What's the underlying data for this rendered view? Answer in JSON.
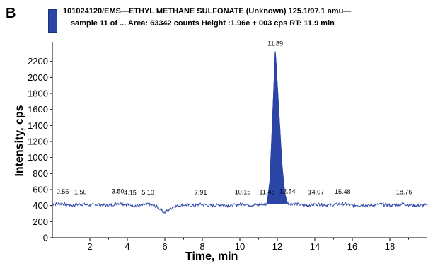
{
  "panel_letter": "B",
  "colors": {
    "trace": "#2b45a6",
    "peak_fill": "#2b45a6",
    "axis": "#000000"
  },
  "chart_data": {
    "type": "line",
    "title_line1": "101024120/EMS—ETHYL METHANE SULFONATE (Unknown) 125.1/97.1 amu—",
    "title_line2": "sample 11 of ...  Area: 63342 counts Height :1.96e + 003 cps RT: 11.9 min",
    "xlabel": "Time, min",
    "ylabel": "Intensity, cps",
    "xlim": [
      0,
      20
    ],
    "ylim": [
      0,
      2400
    ],
    "xticks": [
      2,
      4,
      6,
      8,
      10,
      12,
      14,
      16,
      18
    ],
    "yticks": [
      0,
      200,
      400,
      600,
      800,
      1000,
      1200,
      1400,
      1600,
      1800,
      2000,
      2200
    ],
    "baseline": 410,
    "peak": {
      "rt": 11.89,
      "height": 2350,
      "start": 11.45,
      "end": 12.54
    },
    "series": [
      {
        "values": [
          [
            0,
            420
          ],
          [
            0.55,
            425
          ],
          [
            1.0,
            400
          ],
          [
            1.5,
            420
          ],
          [
            2.0,
            405
          ],
          [
            2.5,
            415
          ],
          [
            3.0,
            400
          ],
          [
            3.5,
            430
          ],
          [
            4.15,
            410
          ],
          [
            4.6,
            395
          ],
          [
            5.1,
            415
          ],
          [
            5.5,
            395
          ],
          [
            5.8,
            350
          ],
          [
            6.0,
            315
          ],
          [
            6.2,
            350
          ],
          [
            6.5,
            390
          ],
          [
            7.0,
            410
          ],
          [
            7.5,
            400
          ],
          [
            7.91,
            415
          ],
          [
            8.5,
            400
          ],
          [
            9.0,
            410
          ],
          [
            9.5,
            400
          ],
          [
            10.15,
            420
          ],
          [
            10.6,
            405
          ],
          [
            11.0,
            410
          ],
          [
            11.45,
            420
          ],
          [
            11.6,
            700
          ],
          [
            11.75,
            1500
          ],
          [
            11.89,
            2350
          ],
          [
            12.05,
            1700
          ],
          [
            12.25,
            900
          ],
          [
            12.4,
            550
          ],
          [
            12.54,
            430
          ],
          [
            13.0,
            420
          ],
          [
            13.5,
            400
          ],
          [
            14.07,
            420
          ],
          [
            14.6,
            405
          ],
          [
            15.0,
            410
          ],
          [
            15.48,
            425
          ],
          [
            16.0,
            400
          ],
          [
            16.5,
            410
          ],
          [
            17.0,
            400
          ],
          [
            17.5,
            415
          ],
          [
            18.0,
            405
          ],
          [
            18.76,
            420
          ],
          [
            19.3,
            400
          ],
          [
            20.0,
            405
          ]
        ]
      }
    ],
    "peak_labels": [
      {
        "x": 0.55,
        "text": "0.55"
      },
      {
        "x": 1.5,
        "text": "1.50"
      },
      {
        "x": 3.5,
        "text": "3.50"
      },
      {
        "x": 4.15,
        "text": "4.15"
      },
      {
        "x": 5.1,
        "text": "5.10"
      },
      {
        "x": 7.91,
        "text": "7.91"
      },
      {
        "x": 10.15,
        "text": "10.15"
      },
      {
        "x": 11.45,
        "text": "11.45"
      },
      {
        "x": 11.89,
        "text": "11.89"
      },
      {
        "x": 12.54,
        "text": "12.54"
      },
      {
        "x": 14.07,
        "text": "14.07"
      },
      {
        "x": 15.48,
        "text": "15.48"
      },
      {
        "x": 18.76,
        "text": "18.76"
      }
    ]
  }
}
